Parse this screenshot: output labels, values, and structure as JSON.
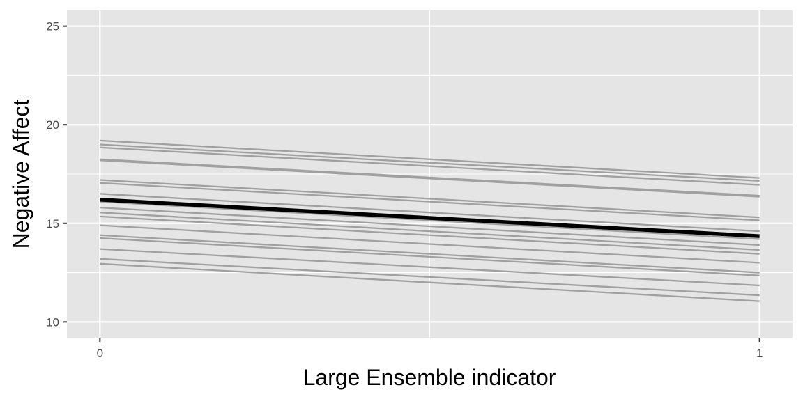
{
  "chart_data": {
    "type": "line",
    "title": "",
    "xlabel": "Large Ensemble indicator",
    "ylabel": "Negative Affect",
    "xlim": [
      -0.05,
      1.05
    ],
    "ylim": [
      9.2,
      25.8
    ],
    "x_ticks": [
      0,
      1
    ],
    "x_tick_labels": [
      "0",
      "1"
    ],
    "y_ticks": [
      10,
      15,
      20,
      25
    ],
    "y_tick_labels": [
      "10",
      "15",
      "20",
      "25"
    ],
    "grid": true,
    "legend": "none",
    "colors": {
      "panel": "#e5e5e5",
      "grid": "#ffffff",
      "group_line": "#a0a0a0",
      "mean_line": "#000000"
    },
    "series": [
      {
        "role": "group",
        "x": [
          0,
          1
        ],
        "y": [
          19.2,
          17.3
        ]
      },
      {
        "role": "group",
        "x": [
          0,
          1
        ],
        "y": [
          19.0,
          17.15
        ]
      },
      {
        "role": "group",
        "x": [
          0,
          1
        ],
        "y": [
          18.85,
          16.95
        ]
      },
      {
        "role": "group",
        "x": [
          0,
          1
        ],
        "y": [
          18.25,
          16.4
        ]
      },
      {
        "role": "group",
        "x": [
          0,
          1
        ],
        "y": [
          18.2,
          16.35
        ]
      },
      {
        "role": "group",
        "x": [
          0,
          1
        ],
        "y": [
          17.2,
          15.3
        ]
      },
      {
        "role": "group",
        "x": [
          0,
          1
        ],
        "y": [
          17.05,
          15.15
        ]
      },
      {
        "role": "group",
        "x": [
          0,
          1
        ],
        "y": [
          16.5,
          14.6
        ]
      },
      {
        "role": "group",
        "x": [
          0,
          1
        ],
        "y": [
          16.1,
          14.2
        ]
      },
      {
        "role": "group",
        "x": [
          0,
          1
        ],
        "y": [
          15.8,
          13.9
        ]
      },
      {
        "role": "group",
        "x": [
          0,
          1
        ],
        "y": [
          15.55,
          13.65
        ]
      },
      {
        "role": "group",
        "x": [
          0,
          1
        ],
        "y": [
          15.35,
          13.45
        ]
      },
      {
        "role": "group",
        "x": [
          0,
          1
        ],
        "y": [
          14.9,
          13.0
        ]
      },
      {
        "role": "group",
        "x": [
          0,
          1
        ],
        "y": [
          14.4,
          12.5
        ]
      },
      {
        "role": "group",
        "x": [
          0,
          1
        ],
        "y": [
          14.25,
          12.35
        ]
      },
      {
        "role": "group",
        "x": [
          0,
          1
        ],
        "y": [
          13.7,
          11.85
        ]
      },
      {
        "role": "group",
        "x": [
          0,
          1
        ],
        "y": [
          13.2,
          11.35
        ]
      },
      {
        "role": "group",
        "x": [
          0,
          1
        ],
        "y": [
          12.95,
          11.05
        ]
      },
      {
        "role": "mean",
        "x": [
          0,
          1
        ],
        "y": [
          16.2,
          14.35
        ]
      }
    ]
  }
}
